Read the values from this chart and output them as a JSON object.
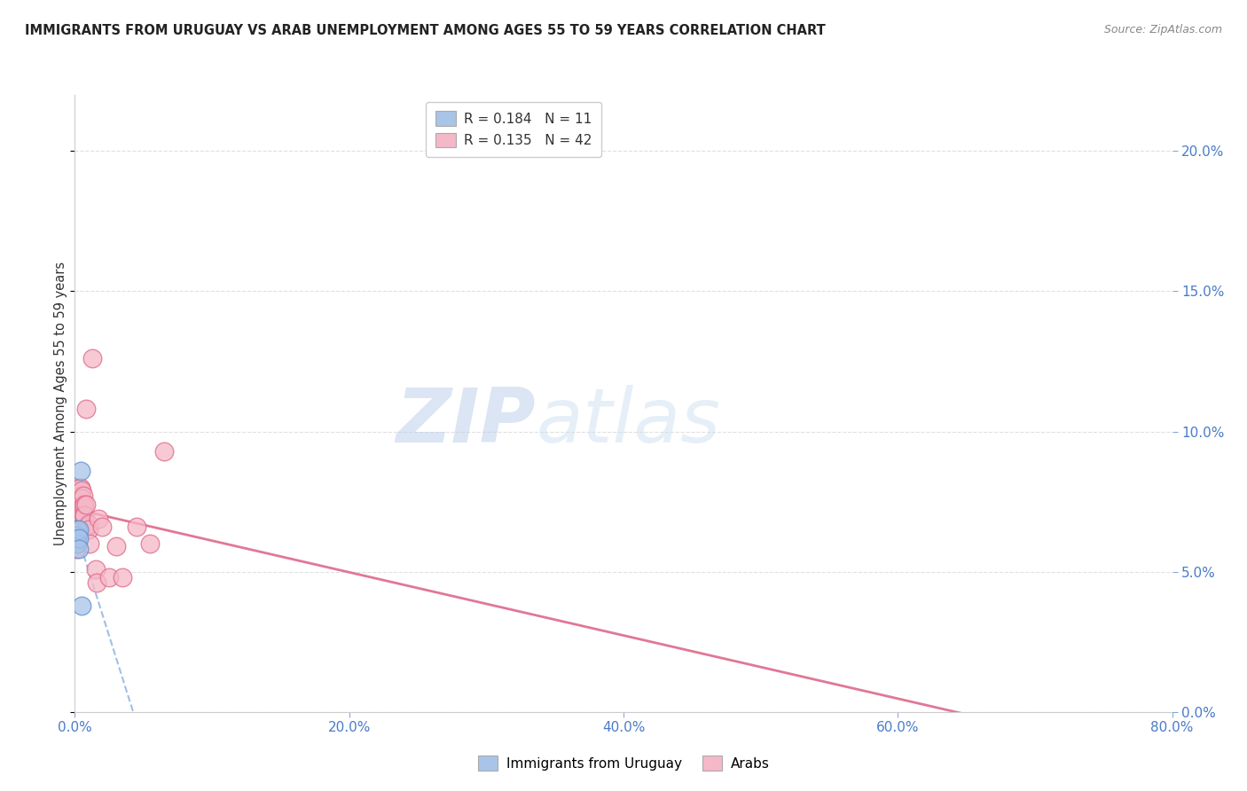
{
  "title": "IMMIGRANTS FROM URUGUAY VS ARAB UNEMPLOYMENT AMONG AGES 55 TO 59 YEARS CORRELATION CHART",
  "source": "Source: ZipAtlas.com",
  "xlabel": "",
  "ylabel": "Unemployment Among Ages 55 to 59 years",
  "xlim": [
    0.0,
    0.8
  ],
  "ylim": [
    0.0,
    0.22
  ],
  "xticks": [
    0.0,
    0.2,
    0.4,
    0.6,
    0.8
  ],
  "yticks": [
    0.0,
    0.05,
    0.1,
    0.15,
    0.2
  ],
  "ytick_labels_right": [
    "0.0%",
    "5.0%",
    "10.0%",
    "15.0%",
    "20.0%"
  ],
  "xtick_labels": [
    "0.0%",
    "20.0%",
    "40.0%",
    "60.0%",
    "80.0%"
  ],
  "watermark_zip": "ZIP",
  "watermark_atlas": "atlas",
  "legend_label1": "Immigrants from Uruguay",
  "legend_label2": "Arabs",
  "R1": 0.184,
  "N1": 11,
  "R2": 0.135,
  "N2": 42,
  "color_blue": "#a8c4e8",
  "color_pink": "#f5b8c8",
  "color_blue_dark": "#6090cc",
  "color_pink_dark": "#e06888",
  "color_blue_line": "#8ab0e0",
  "color_pink_line": "#e07090",
  "uruguay_x": [
    0.001,
    0.001,
    0.0015,
    0.002,
    0.002,
    0.002,
    0.003,
    0.003,
    0.003,
    0.004,
    0.005
  ],
  "uruguay_y": [
    0.062,
    0.061,
    0.062,
    0.065,
    0.063,
    0.06,
    0.065,
    0.062,
    0.058,
    0.086,
    0.038
  ],
  "arab_x": [
    0.001,
    0.001,
    0.001,
    0.002,
    0.002,
    0.002,
    0.002,
    0.003,
    0.003,
    0.003,
    0.003,
    0.003,
    0.004,
    0.004,
    0.004,
    0.004,
    0.005,
    0.005,
    0.005,
    0.005,
    0.006,
    0.006,
    0.006,
    0.007,
    0.007,
    0.008,
    0.008,
    0.009,
    0.01,
    0.01,
    0.011,
    0.013,
    0.015,
    0.016,
    0.017,
    0.02,
    0.025,
    0.03,
    0.035,
    0.045,
    0.055,
    0.065
  ],
  "arab_y": [
    0.063,
    0.06,
    0.058,
    0.079,
    0.075,
    0.072,
    0.068,
    0.08,
    0.078,
    0.075,
    0.072,
    0.068,
    0.08,
    0.077,
    0.074,
    0.07,
    0.079,
    0.076,
    0.073,
    0.07,
    0.077,
    0.073,
    0.07,
    0.074,
    0.07,
    0.108,
    0.074,
    0.066,
    0.067,
    0.065,
    0.06,
    0.126,
    0.051,
    0.046,
    0.069,
    0.066,
    0.048,
    0.059,
    0.048,
    0.066,
    0.06,
    0.093
  ],
  "background_color": "#ffffff",
  "grid_color": "#e0e0e0",
  "title_color": "#222222",
  "source_color": "#888888",
  "axis_label_color": "#4a7cc7"
}
